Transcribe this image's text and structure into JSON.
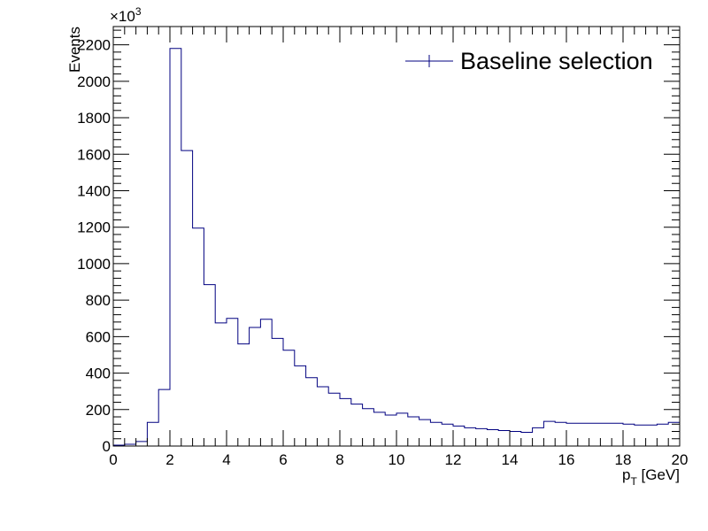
{
  "chart_data": {
    "type": "histogram",
    "xlabel": "p",
    "xlabel_sub": "T",
    "xlabel_unit": "[GeV]",
    "ylabel": "Events",
    "y_multiplier": "×10",
    "y_multiplier_exp": "3",
    "xlim": [
      0,
      20
    ],
    "ylim": [
      0,
      2300
    ],
    "x_ticks": [
      0,
      2,
      4,
      6,
      8,
      10,
      12,
      14,
      16,
      18,
      20
    ],
    "y_ticks": [
      0,
      200,
      400,
      600,
      800,
      1000,
      1200,
      1400,
      1600,
      1800,
      2000,
      2200
    ],
    "x_tick_labels": [
      "0",
      "2",
      "4",
      "6",
      "8",
      "10",
      "12",
      "14",
      "16",
      "18",
      "20"
    ],
    "y_tick_labels": [
      "0",
      "200",
      "400",
      "600",
      "800",
      "1000",
      "1200",
      "1400",
      "1600",
      "1800",
      "2000",
      "2200"
    ],
    "grid": false,
    "legend_position": "top-right",
    "series": [
      {
        "name": "Baseline selection",
        "color": "#000080",
        "bin_edges": [
          0,
          0.4,
          0.8,
          1.2,
          1.6,
          2.0,
          2.4,
          2.8,
          3.2,
          3.6,
          4.0,
          4.4,
          4.8,
          5.2,
          5.6,
          6.0,
          6.4,
          6.8,
          7.2,
          7.6,
          8.0,
          8.4,
          8.8,
          9.2,
          9.6,
          10.0,
          10.4,
          10.8,
          11.2,
          11.6,
          12.0,
          12.4,
          12.8,
          13.2,
          13.6,
          14.0,
          14.4,
          14.8,
          15.2,
          15.6,
          16.0,
          16.4,
          16.8,
          17.2,
          17.6,
          18.0,
          18.4,
          18.8,
          19.2,
          19.6,
          20.0
        ],
        "values": [
          5,
          10,
          25,
          130,
          310,
          2180,
          1620,
          1195,
          885,
          675,
          700,
          560,
          650,
          695,
          590,
          525,
          440,
          375,
          325,
          290,
          260,
          230,
          205,
          185,
          170,
          180,
          160,
          145,
          130,
          120,
          110,
          100,
          95,
          90,
          85,
          80,
          75,
          100,
          135,
          130,
          125,
          125,
          125,
          125,
          125,
          120,
          115,
          115,
          120,
          130
        ]
      }
    ]
  }
}
